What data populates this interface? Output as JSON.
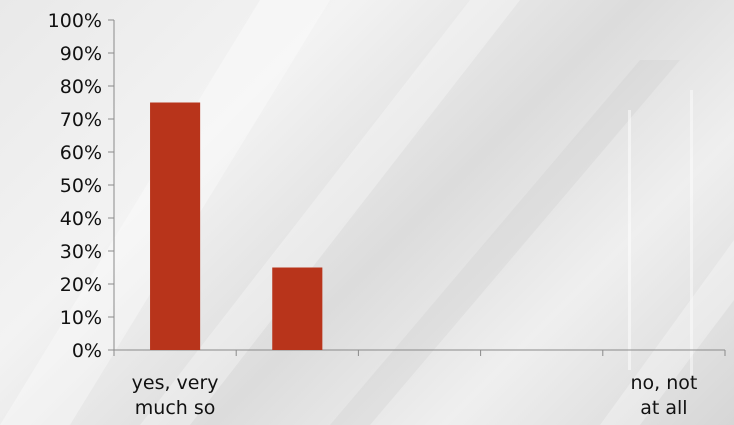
{
  "chart_data": {
    "type": "bar",
    "categories": [
      "yes, very much so",
      "",
      "",
      "",
      "no, not at all"
    ],
    "category_label_lines": [
      [
        "yes, very",
        "much so"
      ],
      [],
      [],
      [],
      [
        "no, not",
        "at all"
      ]
    ],
    "values": [
      75,
      25,
      0,
      0,
      0
    ],
    "ylim": [
      0,
      100
    ],
    "yticks": [
      "0%",
      "10%",
      "20%",
      "30%",
      "40%",
      "50%",
      "60%",
      "70%",
      "80%",
      "90%",
      "100%"
    ],
    "bar_color": "#b8341b",
    "grid": false,
    "legend": "none"
  }
}
